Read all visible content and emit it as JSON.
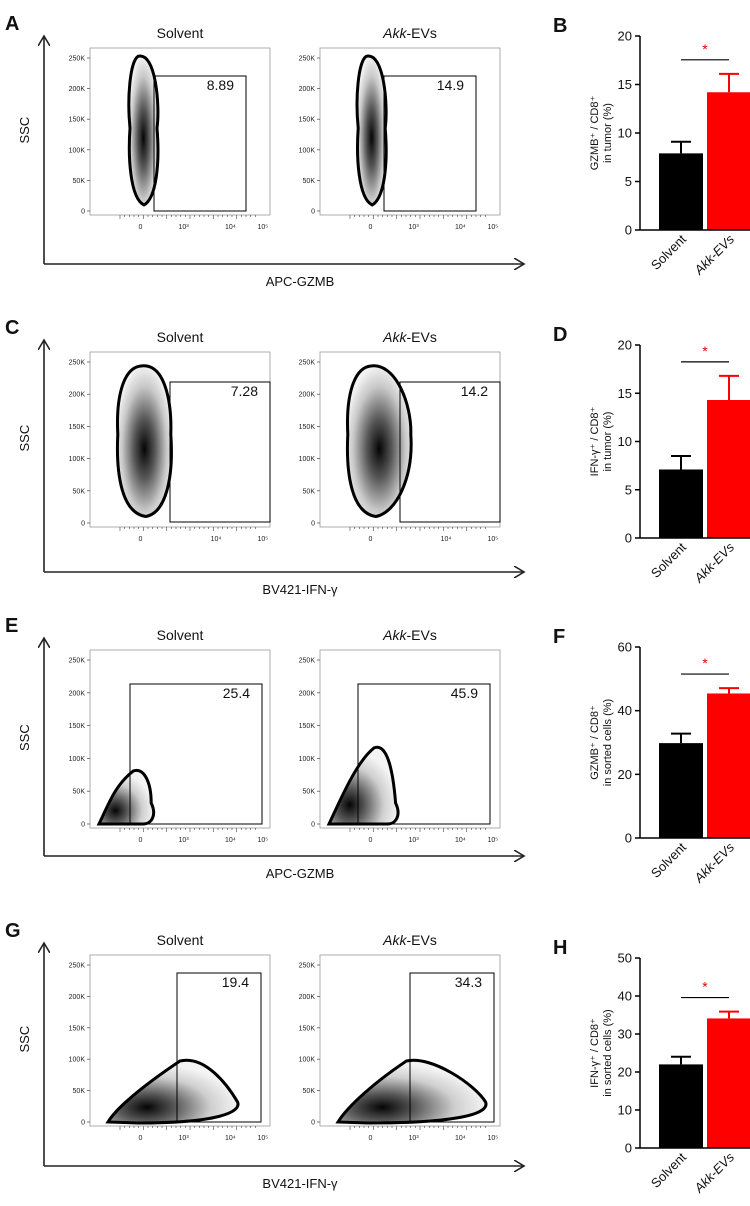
{
  "panels": [
    {
      "label": "A",
      "kind": "flow",
      "y_axis_label": "SSC",
      "x_axis_label": "APC-GZMB",
      "y_ticks": [
        "250K",
        "200K",
        "150K",
        "100K",
        "50K",
        "0"
      ],
      "x_ticks": [
        "0",
        "10³",
        "10⁴",
        "10⁵"
      ],
      "plots": [
        {
          "condition": "Solvent",
          "gate_value": "8.89"
        },
        {
          "condition_italic": "Akk",
          "condition": "-EVs",
          "gate_value": "14.9"
        }
      ]
    },
    {
      "label": "C",
      "kind": "flow",
      "y_axis_label": "SSC",
      "x_axis_label": "BV421-IFN-γ",
      "y_ticks": [
        "250K",
        "200K",
        "150K",
        "100K",
        "50K",
        "0"
      ],
      "x_ticks": [
        "0",
        "10⁴",
        "10⁵"
      ],
      "plots": [
        {
          "condition": "Solvent",
          "gate_value": "7.28"
        },
        {
          "condition_italic": "Akk",
          "condition": "-EVs",
          "gate_value": "14.2"
        }
      ]
    },
    {
      "label": "E",
      "kind": "flow",
      "y_axis_label": "SSC",
      "x_axis_label": "APC-GZMB",
      "y_ticks": [
        "250K",
        "200K",
        "150K",
        "100K",
        "50K",
        "0"
      ],
      "x_ticks": [
        "0",
        "10³",
        "10⁴",
        "10⁵"
      ],
      "plots": [
        {
          "condition": "Solvent",
          "gate_value": "25.4"
        },
        {
          "condition_italic": "Akk",
          "condition": "-EVs",
          "gate_value": "45.9"
        }
      ]
    },
    {
      "label": "G",
      "kind": "flow",
      "y_axis_label": "SSC",
      "x_axis_label": "BV421-IFN-γ",
      "y_ticks": [
        "250K",
        "200K",
        "150K",
        "100K",
        "50K",
        "0"
      ],
      "x_ticks": [
        "0",
        "10³",
        "10⁴",
        "10⁵"
      ],
      "plots": [
        {
          "condition": "Solvent",
          "gate_value": "19.4"
        },
        {
          "condition_italic": "Akk",
          "condition": "-EVs",
          "gate_value": "34.3"
        }
      ]
    }
  ],
  "chart_data": [
    {
      "label": "B",
      "type": "bar",
      "categories": [
        "Solvent",
        "Akk-EVs"
      ],
      "values": [
        7.9,
        14.2
      ],
      "errors": [
        1.2,
        1.9
      ],
      "colors": [
        "#000000",
        "#ff0000"
      ],
      "ylabel_lines": [
        "GZMB⁺ / CD8⁺",
        "in tumor (%)"
      ],
      "ylim": [
        0,
        20
      ],
      "yticks": [
        0,
        5,
        10,
        15,
        20
      ],
      "significance": "*"
    },
    {
      "label": "D",
      "type": "bar",
      "categories": [
        "Solvent",
        "Akk-EVs"
      ],
      "values": [
        7.1,
        14.3
      ],
      "errors": [
        1.4,
        2.5
      ],
      "colors": [
        "#000000",
        "#ff0000"
      ],
      "ylabel_lines": [
        "IFN-γ⁺ / CD8⁺",
        "in tumor (%)"
      ],
      "ylim": [
        0,
        20
      ],
      "yticks": [
        0,
        5,
        10,
        15,
        20
      ],
      "significance": "*"
    },
    {
      "label": "F",
      "type": "bar",
      "categories": [
        "Solvent",
        "Akk-EVs"
      ],
      "values": [
        29.8,
        45.4
      ],
      "errors": [
        3.0,
        1.7
      ],
      "colors": [
        "#000000",
        "#ff0000"
      ],
      "ylabel_lines": [
        "GZMB⁺ / CD8⁺",
        "in sorted cells (%)"
      ],
      "ylim": [
        0,
        60
      ],
      "yticks": [
        0,
        20,
        40,
        60
      ],
      "significance": "*"
    },
    {
      "label": "H",
      "type": "bar",
      "categories": [
        "Solvent",
        "Akk-EVs"
      ],
      "values": [
        22.0,
        34.1
      ],
      "errors": [
        2.0,
        1.8
      ],
      "colors": [
        "#000000",
        "#ff0000"
      ],
      "ylabel_lines": [
        "IFN-γ⁺ / CD8⁺",
        "in sorted cells (%)"
      ],
      "ylim": [
        0,
        50
      ],
      "yticks": [
        0,
        10,
        20,
        30,
        40,
        50
      ],
      "significance": "*"
    }
  ]
}
